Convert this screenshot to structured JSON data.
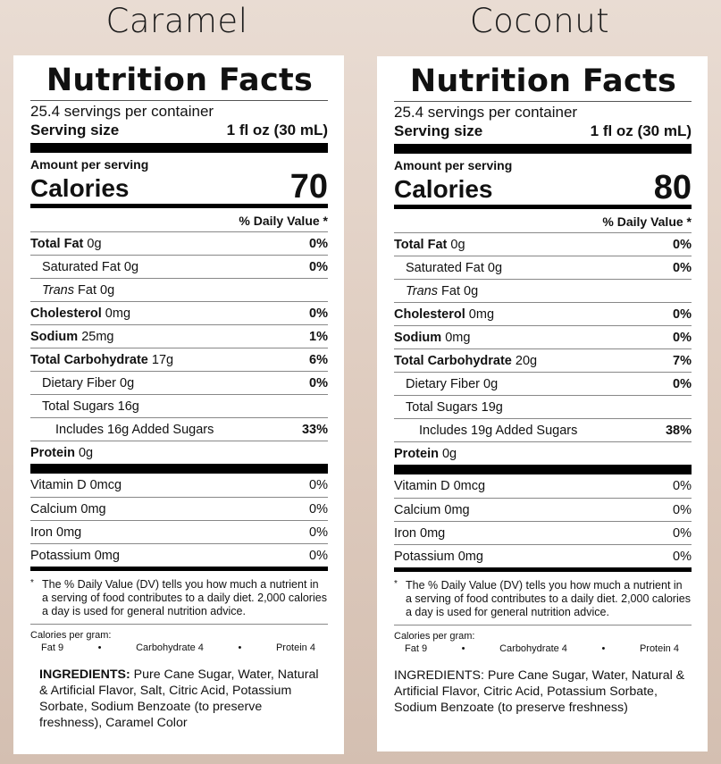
{
  "products": [
    {
      "flavor": "Caramel",
      "nf_title": "Nutrition Facts",
      "servings": "25.4 servings per container",
      "serving_size_label": "Serving size",
      "serving_size_value": "1 fl oz (30 mL)",
      "amount_label": "Amount per serving",
      "calories_label": "Calories",
      "calories_value": "70",
      "dv_header": "% Daily Value *",
      "nutrients": [
        {
          "name": "Total Fat",
          "amount": "0g",
          "dv": "0%"
        },
        {
          "name": "Saturated Fat",
          "amount": "0g",
          "dv": "0%"
        },
        {
          "name": "Trans",
          "amount": "Fat 0g",
          "dv": ""
        },
        {
          "name": "Cholesterol",
          "amount": "0mg",
          "dv": "0%"
        },
        {
          "name": "Sodium",
          "amount": "25mg",
          "dv": "1%"
        },
        {
          "name": "Total Carbohydrate",
          "amount": "17g",
          "dv": "6%"
        },
        {
          "name": "Dietary Fiber",
          "amount": "0g",
          "dv": "0%"
        },
        {
          "name": "Total Sugars",
          "amount": "16g",
          "dv": ""
        },
        {
          "name": "Includes 16g Added Sugars",
          "amount": "",
          "dv": "33%"
        },
        {
          "name": "Protein",
          "amount": "0g",
          "dv": ""
        }
      ],
      "vitamins": [
        {
          "name": "Vitamin D 0mcg",
          "dv": "0%"
        },
        {
          "name": "Calcium 0mg",
          "dv": "0%"
        },
        {
          "name": "Iron 0mg",
          "dv": "0%"
        },
        {
          "name": "Potassium 0mg",
          "dv": "0%"
        }
      ],
      "footnote_star": "*",
      "footnote": "The % Daily Value (DV) tells you how much a nutrient in a serving of food contributes to a daily diet. 2,000 calories a day is used for general nutrition advice.",
      "cal_per_gram_label": "Calories per gram:",
      "cal_per_gram": [
        "Fat 9",
        "•",
        "Carbohydrate 4",
        "•",
        "Protein 4"
      ],
      "ingredients_label": "INGREDIENTS:",
      "ingredients": "Pure Cane Sugar, Water, Natural & Artificial Flavor, Salt, Citric Acid, Potassium Sorbate, Sodium Benzoate (to preserve freshness), Caramel Color"
    },
    {
      "flavor": "Coconut",
      "nf_title": "Nutrition Facts",
      "servings": "25.4 servings per container",
      "serving_size_label": "Serving size",
      "serving_size_value": "1 fl oz (30 mL)",
      "amount_label": "Amount per serving",
      "calories_label": "Calories",
      "calories_value": "80",
      "dv_header": "% Daily Value *",
      "nutrients": [
        {
          "name": "Total Fat",
          "amount": "0g",
          "dv": "0%"
        },
        {
          "name": "Saturated Fat",
          "amount": "0g",
          "dv": "0%"
        },
        {
          "name": "Trans",
          "amount": "Fat 0g",
          "dv": ""
        },
        {
          "name": "Cholesterol",
          "amount": "0mg",
          "dv": "0%"
        },
        {
          "name": "Sodium",
          "amount": "0mg",
          "dv": "0%"
        },
        {
          "name": "Total Carbohydrate",
          "amount": "20g",
          "dv": "7%"
        },
        {
          "name": "Dietary Fiber",
          "amount": "0g",
          "dv": "0%"
        },
        {
          "name": "Total Sugars",
          "amount": "19g",
          "dv": ""
        },
        {
          "name": "Includes 19g Added Sugars",
          "amount": "",
          "dv": "38%"
        },
        {
          "name": "Protein",
          "amount": "0g",
          "dv": ""
        }
      ],
      "vitamins": [
        {
          "name": "Vitamin D 0mcg",
          "dv": "0%"
        },
        {
          "name": "Calcium 0mg",
          "dv": "0%"
        },
        {
          "name": "Iron 0mg",
          "dv": "0%"
        },
        {
          "name": "Potassium 0mg",
          "dv": "0%"
        }
      ],
      "footnote_star": "*",
      "footnote": "The % Daily Value (DV) tells you how much a nutrient in a serving of food contributes to a daily diet. 2,000 calories a day is used for general nutrition advice.",
      "cal_per_gram_label": "Calories per gram:",
      "cal_per_gram": [
        "Fat 9",
        "•",
        "Carbohydrate 4",
        "•",
        "Protein 4"
      ],
      "ingredients_label": "INGREDIENTS:",
      "ingredients": "Pure Cane Sugar, Water, Natural & Artificial Flavor, Citric Acid, Potassium Sorbate, Sodium Benzoate (to preserve freshness)"
    }
  ]
}
